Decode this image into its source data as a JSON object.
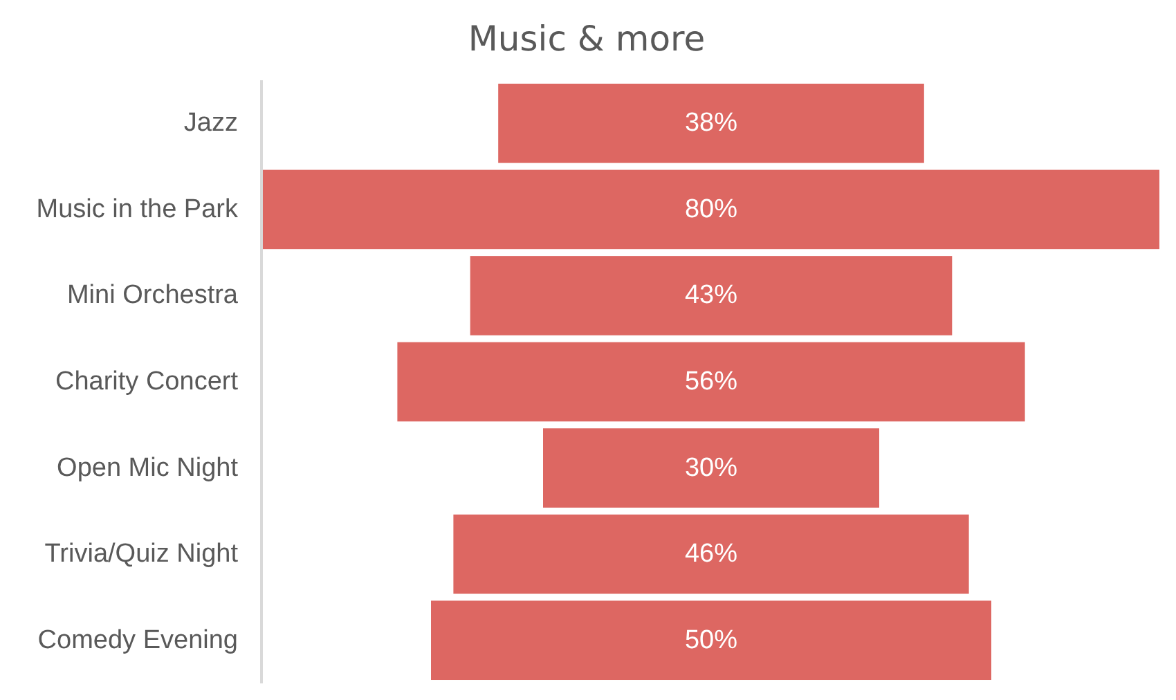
{
  "chart_data": {
    "type": "other",
    "title": "Music & more",
    "categories": [
      "Jazz",
      "Music in the Park",
      "Mini Orchestra",
      "Charity Concert",
      "Open Mic Night",
      "Trivia/Quiz Night",
      "Comedy Evening"
    ],
    "values": [
      38,
      80,
      43,
      56,
      30,
      46,
      50
    ],
    "value_labels": [
      "38%",
      "80%",
      "43%",
      "56%",
      "30%",
      "46%",
      "50%"
    ],
    "color": "#dd6762"
  }
}
